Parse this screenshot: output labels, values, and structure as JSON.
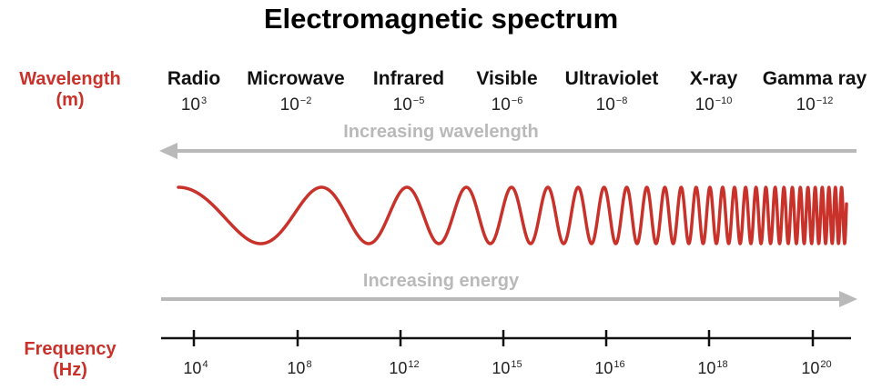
{
  "title": "Electromagnetic spectrum",
  "wavelength_label": {
    "line1": "Wavelength",
    "line2": "(m)"
  },
  "frequency_label": {
    "line1": "Frequency",
    "line2": "(Hz)"
  },
  "bands": [
    {
      "name": "Radio",
      "wl_base": "10",
      "wl_exp": "3"
    },
    {
      "name": "Microwave",
      "wl_base": "10",
      "wl_exp": "−2"
    },
    {
      "name": "Infrared",
      "wl_base": "10",
      "wl_exp": "−5"
    },
    {
      "name": "Visible",
      "wl_base": "10",
      "wl_exp": "−6"
    },
    {
      "name": "Ultraviolet",
      "wl_base": "10",
      "wl_exp": "−8"
    },
    {
      "name": "X-ray",
      "wl_base": "10",
      "wl_exp": "−10"
    },
    {
      "name": "Gamma ray",
      "wl_base": "10",
      "wl_exp": "−12"
    }
  ],
  "arrows": {
    "wavelength": "Increasing wavelength",
    "energy": "Increasing energy"
  },
  "frequencies": [
    {
      "base": "10",
      "exp": "4"
    },
    {
      "base": "10",
      "exp": "8"
    },
    {
      "base": "10",
      "exp": "12"
    },
    {
      "base": "10",
      "exp": "15"
    },
    {
      "base": "10",
      "exp": "16"
    },
    {
      "base": "10",
      "exp": "18"
    },
    {
      "base": "10",
      "exp": "20"
    }
  ],
  "colors": {
    "accent_red": "#c8322a",
    "arrow_gray": "#b9b9b9",
    "axis": "#111111"
  }
}
